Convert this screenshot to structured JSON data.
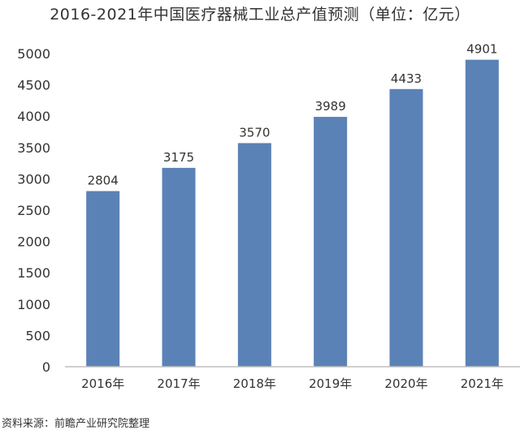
{
  "chart_data": {
    "type": "bar",
    "title": "2016-2021年中国医疗器械工业总产值预测（单位：亿元）",
    "categories": [
      "2016年",
      "2017年",
      "2018年",
      "2019年",
      "2020年",
      "2021年"
    ],
    "values": [
      2804,
      3175,
      3570,
      3989,
      4433,
      4901
    ],
    "xlabel": "",
    "ylabel": "",
    "ylim": [
      0,
      5000
    ],
    "yticks": [
      0,
      500,
      1000,
      1500,
      2000,
      2500,
      3000,
      3500,
      4000,
      4500,
      5000
    ],
    "grid": false,
    "legend": "none",
    "colors": {
      "bar": "#5b82b6",
      "axis": "#bfbfbf",
      "text": "#333333"
    }
  },
  "source": "资料来源：前瞻产业研究院整理"
}
